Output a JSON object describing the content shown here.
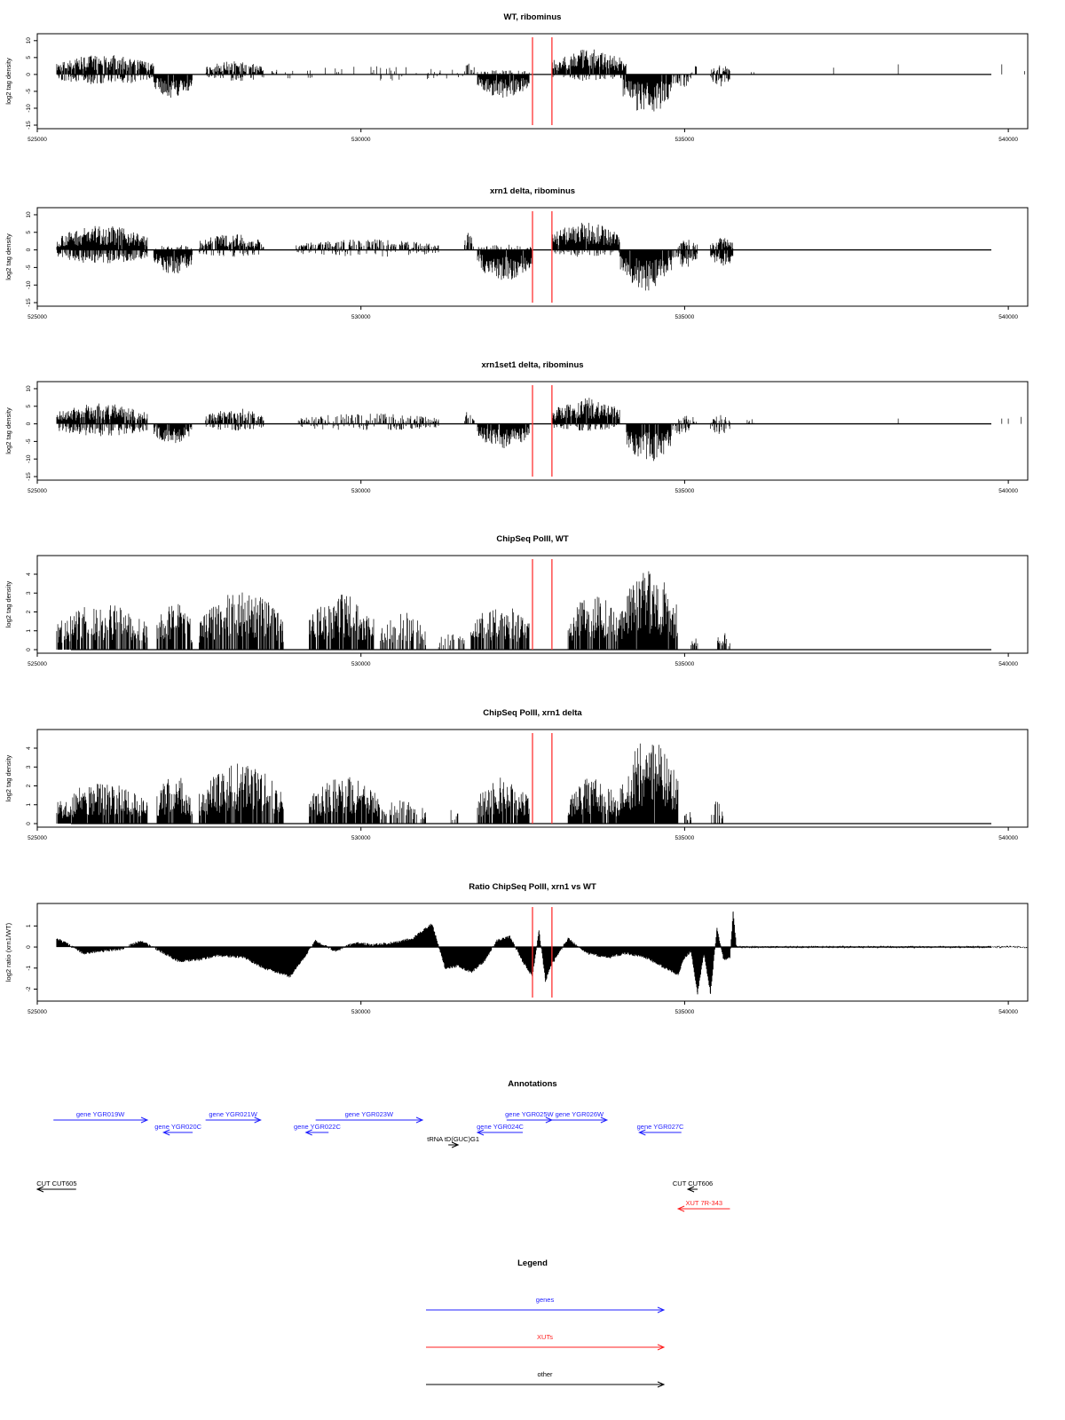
{
  "chart_data": [
    {
      "type": "bar",
      "title": "WT, ribominus",
      "ylabel": "log2 tag density",
      "xlim": [
        525000,
        540300
      ],
      "ylim": [
        -15,
        11
      ],
      "yticks": [
        -15,
        -10,
        -5,
        0,
        5,
        10
      ],
      "xticks": [
        525000,
        530000,
        535000,
        540000
      ],
      "markers": [
        532650,
        532950
      ],
      "segments": [
        {
          "x0": 525300,
          "x1": 526800,
          "dir": 1,
          "amp": 6,
          "dens": 0.9
        },
        {
          "x0": 525300,
          "x1": 526800,
          "dir": -1,
          "amp": 3,
          "dens": 0.5
        },
        {
          "x0": 526800,
          "x1": 527400,
          "dir": -1,
          "amp": 7,
          "dens": 0.95
        },
        {
          "x0": 527600,
          "x1": 528500,
          "dir": 1,
          "amp": 4,
          "dens": 0.7
        },
        {
          "x0": 527600,
          "x1": 528500,
          "dir": -1,
          "amp": 2,
          "dens": 0.3
        },
        {
          "x0": 528600,
          "x1": 531600,
          "dir": 1,
          "amp": 2.5,
          "dens": 0.1
        },
        {
          "x0": 528600,
          "x1": 531600,
          "dir": -1,
          "amp": 2,
          "dens": 0.06
        },
        {
          "x0": 531600,
          "x1": 531750,
          "dir": 1,
          "amp": 4,
          "dens": 0.6
        },
        {
          "x0": 531800,
          "x1": 532600,
          "dir": -1,
          "amp": 7,
          "dens": 0.95
        },
        {
          "x0": 531800,
          "x1": 532600,
          "dir": 1,
          "amp": 1.5,
          "dens": 0.2
        },
        {
          "x0": 532950,
          "x1": 534100,
          "dir": 1,
          "amp": 7.5,
          "dens": 0.95
        },
        {
          "x0": 532950,
          "x1": 534100,
          "dir": -1,
          "amp": 2,
          "dens": 0.25
        },
        {
          "x0": 534050,
          "x1": 534800,
          "dir": -1,
          "amp": 12,
          "dens": 0.97
        },
        {
          "x0": 534800,
          "x1": 535100,
          "dir": -1,
          "amp": 4,
          "dens": 0.5
        },
        {
          "x0": 535100,
          "x1": 535200,
          "dir": 1,
          "amp": 3,
          "dens": 0.4
        },
        {
          "x0": 535400,
          "x1": 535700,
          "dir": 1,
          "amp": 3,
          "dens": 0.5
        },
        {
          "x0": 535400,
          "x1": 535700,
          "dir": -1,
          "amp": 4,
          "dens": 0.6
        },
        {
          "x0": 535900,
          "x1": 536100,
          "dir": 1,
          "amp": 1.5,
          "dens": 0.15
        }
      ],
      "spikes": [
        [
          538300,
          3
        ],
        [
          539900,
          3
        ],
        [
          537300,
          2
        ],
        [
          540250,
          1
        ]
      ]
    },
    {
      "type": "bar",
      "title": "xrn1 delta, ribominus",
      "ylabel": "log2 tag density",
      "xlim": [
        525000,
        540300
      ],
      "ylim": [
        -15,
        11
      ],
      "yticks": [
        -15,
        -10,
        -5,
        0,
        5,
        10
      ],
      "xticks": [
        525000,
        530000,
        535000,
        540000
      ],
      "markers": [
        532650,
        532950
      ],
      "segments": [
        {
          "x0": 525300,
          "x1": 526700,
          "dir": 1,
          "amp": 7,
          "dens": 0.97
        },
        {
          "x0": 525300,
          "x1": 526700,
          "dir": -1,
          "amp": 4,
          "dens": 0.7
        },
        {
          "x0": 526800,
          "x1": 527400,
          "dir": -1,
          "amp": 7,
          "dens": 0.95
        },
        {
          "x0": 526800,
          "x1": 527400,
          "dir": 1,
          "amp": 1.5,
          "dens": 0.3
        },
        {
          "x0": 527500,
          "x1": 528500,
          "dir": 1,
          "amp": 4.5,
          "dens": 0.8
        },
        {
          "x0": 527500,
          "x1": 528500,
          "dir": -1,
          "amp": 2,
          "dens": 0.3
        },
        {
          "x0": 529000,
          "x1": 531200,
          "dir": 1,
          "amp": 3,
          "dens": 0.55
        },
        {
          "x0": 529000,
          "x1": 531200,
          "dir": -1,
          "amp": 2,
          "dens": 0.2
        },
        {
          "x0": 531600,
          "x1": 531750,
          "dir": 1,
          "amp": 5,
          "dens": 0.6
        },
        {
          "x0": 531800,
          "x1": 532650,
          "dir": -1,
          "amp": 9,
          "dens": 0.97
        },
        {
          "x0": 531800,
          "x1": 532650,
          "dir": 1,
          "amp": 1.5,
          "dens": 0.3
        },
        {
          "x0": 532950,
          "x1": 534000,
          "dir": 1,
          "amp": 8,
          "dens": 0.97
        },
        {
          "x0": 532950,
          "x1": 534000,
          "dir": -1,
          "amp": 2,
          "dens": 0.3
        },
        {
          "x0": 534000,
          "x1": 534800,
          "dir": -1,
          "amp": 12,
          "dens": 0.98
        },
        {
          "x0": 534800,
          "x1": 535200,
          "dir": -1,
          "amp": 5,
          "dens": 0.7
        },
        {
          "x0": 534900,
          "x1": 535200,
          "dir": 1,
          "amp": 3,
          "dens": 0.5
        },
        {
          "x0": 535400,
          "x1": 535750,
          "dir": 1,
          "amp": 3.5,
          "dens": 0.8
        },
        {
          "x0": 535400,
          "x1": 535750,
          "dir": -1,
          "amp": 5,
          "dens": 0.9
        }
      ],
      "spikes": []
    },
    {
      "type": "bar",
      "title": "xrn1set1 delta, ribominus",
      "ylabel": "log2 tag density",
      "xlim": [
        525000,
        540300
      ],
      "ylim": [
        -15,
        11
      ],
      "yticks": [
        -15,
        -10,
        -5,
        0,
        5,
        10
      ],
      "xticks": [
        525000,
        530000,
        535000,
        540000
      ],
      "markers": [
        532650,
        532950
      ],
      "segments": [
        {
          "x0": 525300,
          "x1": 526700,
          "dir": 1,
          "amp": 6,
          "dens": 0.9
        },
        {
          "x0": 525300,
          "x1": 526700,
          "dir": -1,
          "amp": 3.5,
          "dens": 0.5
        },
        {
          "x0": 526800,
          "x1": 527400,
          "dir": -1,
          "amp": 6,
          "dens": 0.9
        },
        {
          "x0": 527600,
          "x1": 528500,
          "dir": 1,
          "amp": 4.5,
          "dens": 0.7
        },
        {
          "x0": 527600,
          "x1": 528500,
          "dir": -1,
          "amp": 2,
          "dens": 0.3
        },
        {
          "x0": 529000,
          "x1": 531200,
          "dir": 1,
          "amp": 3,
          "dens": 0.45
        },
        {
          "x0": 529000,
          "x1": 531200,
          "dir": -1,
          "amp": 2,
          "dens": 0.2
        },
        {
          "x0": 531600,
          "x1": 531750,
          "dir": 1,
          "amp": 4,
          "dens": 0.6
        },
        {
          "x0": 531800,
          "x1": 532600,
          "dir": -1,
          "amp": 7,
          "dens": 0.95
        },
        {
          "x0": 532950,
          "x1": 534000,
          "dir": 1,
          "amp": 7.5,
          "dens": 0.95
        },
        {
          "x0": 532950,
          "x1": 534000,
          "dir": -1,
          "amp": 2,
          "dens": 0.3
        },
        {
          "x0": 534100,
          "x1": 534800,
          "dir": -1,
          "amp": 11,
          "dens": 0.97
        },
        {
          "x0": 534800,
          "x1": 535100,
          "dir": -1,
          "amp": 3,
          "dens": 0.5
        },
        {
          "x0": 534900,
          "x1": 535200,
          "dir": 1,
          "amp": 2.5,
          "dens": 0.4
        },
        {
          "x0": 535400,
          "x1": 535700,
          "dir": 1,
          "amp": 2.5,
          "dens": 0.4
        },
        {
          "x0": 535400,
          "x1": 535700,
          "dir": -1,
          "amp": 3,
          "dens": 0.4
        },
        {
          "x0": 535900,
          "x1": 536100,
          "dir": 1,
          "amp": 1.5,
          "dens": 0.2
        }
      ],
      "spikes": [
        [
          538300,
          1.5
        ],
        [
          539900,
          1.5
        ],
        [
          540000,
          1.5
        ],
        [
          540200,
          2
        ]
      ]
    },
    {
      "type": "bar",
      "title": "ChipSeq PolII, WT",
      "ylabel": "log2 tag density",
      "xlim": [
        525000,
        540300
      ],
      "ylim": [
        0,
        4.8
      ],
      "yticks": [
        0,
        1,
        2,
        3,
        4
      ],
      "xticks": [
        525000,
        530000,
        535000,
        540000
      ],
      "markers": [
        532650,
        532950
      ],
      "segments": [
        {
          "x0": 525300,
          "x1": 526700,
          "dir": 1,
          "amp": 2.5,
          "dens": 0.75
        },
        {
          "x0": 526850,
          "x1": 527400,
          "dir": 1,
          "amp": 2.8,
          "dens": 0.85
        },
        {
          "x0": 527500,
          "x1": 528800,
          "dir": 1,
          "amp": 3.2,
          "dens": 0.85
        },
        {
          "x0": 529200,
          "x1": 530200,
          "dir": 1,
          "amp": 3,
          "dens": 0.85
        },
        {
          "x0": 530300,
          "x1": 531000,
          "dir": 1,
          "amp": 2,
          "dens": 0.5
        },
        {
          "x0": 531200,
          "x1": 531600,
          "dir": 1,
          "amp": 1,
          "dens": 0.5
        },
        {
          "x0": 531700,
          "x1": 532600,
          "dir": 1,
          "amp": 2.5,
          "dens": 0.75
        },
        {
          "x0": 533200,
          "x1": 534000,
          "dir": 1,
          "amp": 3,
          "dens": 0.85
        },
        {
          "x0": 534000,
          "x1": 534900,
          "dir": 1,
          "amp": 4.2,
          "dens": 0.97
        },
        {
          "x0": 535100,
          "x1": 535200,
          "dir": 1,
          "amp": 1,
          "dens": 0.6
        },
        {
          "x0": 535500,
          "x1": 535700,
          "dir": 1,
          "amp": 1,
          "dens": 0.6
        }
      ],
      "spikes": []
    },
    {
      "type": "bar",
      "title": "ChipSeq PolII, xrn1 delta",
      "ylabel": "log2 tag density",
      "xlim": [
        525000,
        540300
      ],
      "ylim": [
        0,
        4.8
      ],
      "yticks": [
        0,
        1,
        2,
        3,
        4
      ],
      "xticks": [
        525000,
        530000,
        535000,
        540000
      ],
      "markers": [
        532650,
        532950
      ],
      "segments": [
        {
          "x0": 525300,
          "x1": 526700,
          "dir": 1,
          "amp": 2.2,
          "dens": 0.9
        },
        {
          "x0": 526850,
          "x1": 527400,
          "dir": 1,
          "amp": 2.7,
          "dens": 0.9
        },
        {
          "x0": 527500,
          "x1": 528800,
          "dir": 1,
          "amp": 3.2,
          "dens": 0.9
        },
        {
          "x0": 529200,
          "x1": 530300,
          "dir": 1,
          "amp": 2.5,
          "dens": 0.9
        },
        {
          "x0": 530300,
          "x1": 531000,
          "dir": 1,
          "amp": 1.3,
          "dens": 0.5
        },
        {
          "x0": 531300,
          "x1": 531600,
          "dir": 1,
          "amp": 0.8,
          "dens": 0.2
        },
        {
          "x0": 531800,
          "x1": 532600,
          "dir": 1,
          "amp": 2.5,
          "dens": 0.8
        },
        {
          "x0": 533200,
          "x1": 534000,
          "dir": 1,
          "amp": 2.5,
          "dens": 0.9
        },
        {
          "x0": 534000,
          "x1": 534900,
          "dir": 1,
          "amp": 4.5,
          "dens": 0.98
        },
        {
          "x0": 535000,
          "x1": 535100,
          "dir": 1,
          "amp": 0.8,
          "dens": 0.6
        },
        {
          "x0": 535400,
          "x1": 535600,
          "dir": 1,
          "amp": 1.2,
          "dens": 0.5
        }
      ],
      "spikes": []
    },
    {
      "type": "area",
      "title": "Ratio ChipSeq PolII, xrn1 vs WT",
      "ylabel": "log2 ratio (xrn1/WT)",
      "xlim": [
        525000,
        540300
      ],
      "ylim": [
        -2.4,
        1.9
      ],
      "yticks": [
        -2,
        -1,
        0,
        1
      ],
      "xticks": [
        525000,
        530000,
        535000,
        540000
      ],
      "markers": [
        532650,
        532950
      ],
      "curve": [
        [
          525300,
          0.4
        ],
        [
          525500,
          0.1
        ],
        [
          525700,
          -0.3
        ],
        [
          526000,
          -0.2
        ],
        [
          526300,
          -0.1
        ],
        [
          526600,
          0.3
        ],
        [
          526900,
          -0.2
        ],
        [
          527200,
          -0.7
        ],
        [
          527500,
          -0.6
        ],
        [
          527800,
          -0.4
        ],
        [
          528200,
          -0.5
        ],
        [
          528500,
          -1.0
        ],
        [
          528700,
          -1.2
        ],
        [
          528900,
          -1.4
        ],
        [
          529100,
          -0.6
        ],
        [
          529300,
          0.3
        ],
        [
          529600,
          -0.2
        ],
        [
          529900,
          0.2
        ],
        [
          530200,
          0.1
        ],
        [
          530500,
          0.2
        ],
        [
          530800,
          0.4
        ],
        [
          531000,
          0.9
        ],
        [
          531100,
          1.1
        ],
        [
          531300,
          -1.0
        ],
        [
          531500,
          -0.9
        ],
        [
          531700,
          -1.2
        ],
        [
          531900,
          -0.7
        ],
        [
          532100,
          0.3
        ],
        [
          532300,
          0.5
        ],
        [
          532500,
          -0.7
        ],
        [
          532650,
          -1.4
        ],
        [
          532750,
          0.8
        ],
        [
          532850,
          -1.6
        ],
        [
          532950,
          -0.8
        ],
        [
          533200,
          0.4
        ],
        [
          533500,
          -0.3
        ],
        [
          533800,
          -0.5
        ],
        [
          534100,
          -0.3
        ],
        [
          534400,
          -0.5
        ],
        [
          534700,
          -1.0
        ],
        [
          534900,
          -1.3
        ],
        [
          535000,
          -0.5
        ],
        [
          535100,
          -0.2
        ],
        [
          535200,
          -2.2
        ],
        [
          535300,
          -0.3
        ],
        [
          535400,
          -2.2
        ],
        [
          535500,
          0.9
        ],
        [
          535600,
          -0.6
        ],
        [
          535700,
          -0.5
        ],
        [
          535750,
          1.7
        ],
        [
          535800,
          0.0
        ],
        [
          540300,
          0.0
        ]
      ],
      "spikes": []
    }
  ],
  "annotations": {
    "title": "Annotations",
    "items": [
      {
        "label": "gene YGR019W",
        "x0": 525250,
        "x1": 526700,
        "row": 0,
        "dir": 1,
        "color": "blue"
      },
      {
        "label": "gene YGR020C",
        "x0": 526950,
        "x1": 527400,
        "row": 1,
        "dir": -1,
        "color": "blue"
      },
      {
        "label": "gene YGR021W",
        "x0": 527600,
        "x1": 528450,
        "row": 0,
        "dir": 1,
        "color": "blue"
      },
      {
        "label": "gene YGR022C",
        "x0": 529150,
        "x1": 529500,
        "row": 1,
        "dir": -1,
        "color": "blue"
      },
      {
        "label": "gene YGR023W",
        "x0": 529300,
        "x1": 530950,
        "row": 0,
        "dir": 1,
        "color": "blue"
      },
      {
        "label": "tRNA tD(GUC)G1",
        "x0": 531350,
        "x1": 531500,
        "row": 2,
        "dir": 1,
        "color": "black"
      },
      {
        "label": "gene YGR024C",
        "x0": 531800,
        "x1": 532500,
        "row": 1,
        "dir": -1,
        "color": "blue"
      },
      {
        "label": "gene YGR025W",
        "x0": 532250,
        "x1": 532950,
        "row": 0,
        "dir": 1,
        "color": "blue"
      },
      {
        "label": "gene YGR026W",
        "x0": 532950,
        "x1": 533800,
        "row": 0,
        "dir": 1,
        "color": "blue"
      },
      {
        "label": "gene YGR027C",
        "x0": 534300,
        "x1": 534950,
        "row": 1,
        "dir": -1,
        "color": "blue"
      },
      {
        "label": "CUT CUT605",
        "x0": 525000,
        "x1": 525600,
        "row": 3,
        "dir": -1,
        "color": "black"
      },
      {
        "label": "CUT CUT606",
        "x0": 535050,
        "x1": 535200,
        "row": 3,
        "dir": -1,
        "color": "black"
      },
      {
        "label": "XUT 7R-343",
        "x0": 534900,
        "x1": 535700,
        "row": 4,
        "dir": -1,
        "color": "red"
      }
    ]
  },
  "legend": {
    "title": "Legend",
    "items": [
      {
        "label": "genes",
        "color": "blue"
      },
      {
        "label": "XUTs",
        "color": "red"
      },
      {
        "label": "other",
        "color": "black"
      }
    ]
  },
  "colors": {
    "blue": "#1f1fff",
    "red": "#ff1f1f",
    "black": "#000000",
    "marker": "#ff3333"
  }
}
